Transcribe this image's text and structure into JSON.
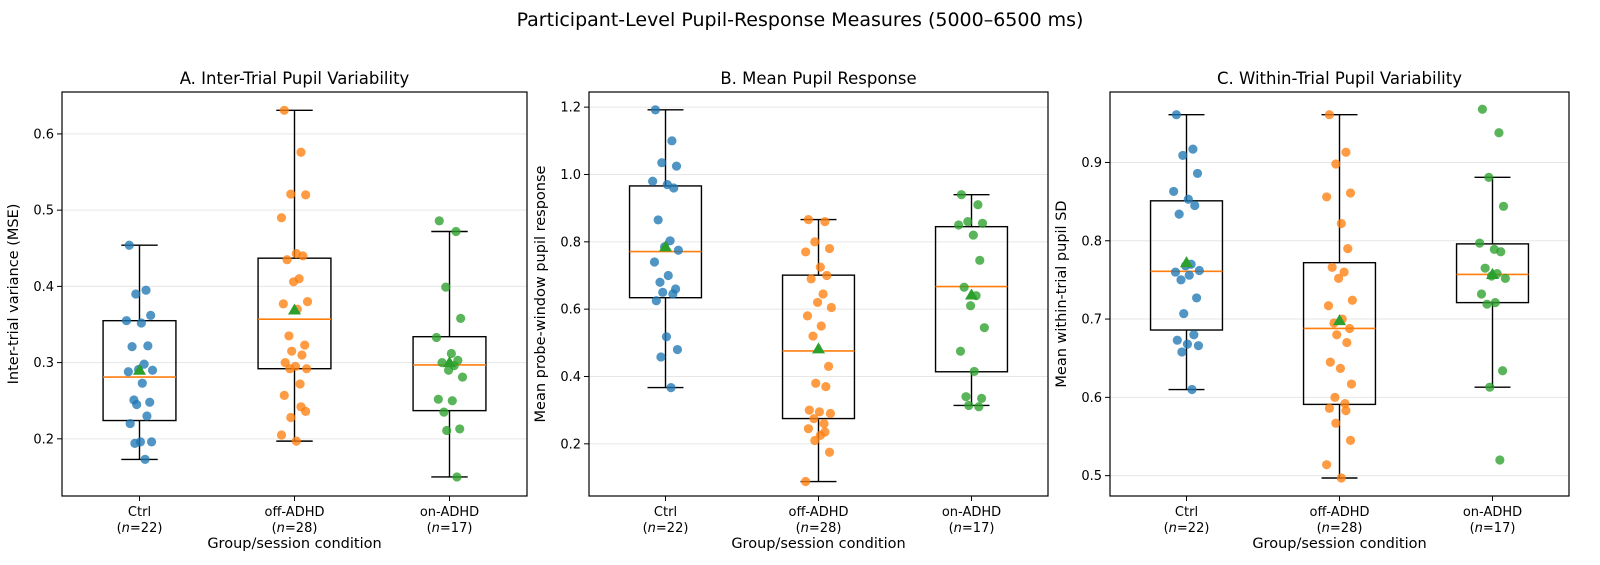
{
  "figure": {
    "title": "Participant-Level Pupil-Response Measures (5000–6500 ms)"
  },
  "colors": {
    "Ctrl": "#1f77b4",
    "off-ADHD": "#ff7f0e",
    "on-ADHD": "#2ca02c",
    "mean_marker": "#2ca02c",
    "median": "#ff7f0e"
  },
  "chart_data": [
    {
      "type": "box",
      "title": "A. Inter-Trial Pupil Variability",
      "xlabel": "Group/session condition",
      "ylabel": "Inter-trial variance (MSE)",
      "ylim": [
        0.125,
        0.655
      ],
      "yticks": [
        0.2,
        0.3,
        0.4,
        0.5,
        0.6
      ],
      "ytick_labels": [
        "0.2",
        "0.3",
        "0.4",
        "0.5",
        "0.6"
      ],
      "grid": "horizontal",
      "categories": [
        "Ctrl",
        "off-ADHD",
        "on-ADHD"
      ],
      "category_n": [
        "22",
        "28",
        "17"
      ],
      "boxes": [
        {
          "group": "Ctrl",
          "whislo": 0.173,
          "q1": 0.224,
          "median": 0.281,
          "q3": 0.355,
          "whishi": 0.454,
          "mean": 0.29
        },
        {
          "group": "off-ADHD",
          "whislo": 0.197,
          "q1": 0.292,
          "median": 0.357,
          "q3": 0.437,
          "whishi": 0.631,
          "mean": 0.369
        },
        {
          "group": "on-ADHD",
          "whislo": 0.15,
          "q1": 0.237,
          "median": 0.297,
          "q3": 0.334,
          "whishi": 0.472,
          "mean": 0.3
        }
      ],
      "points": [
        {
          "group": "Ctrl",
          "values": [
            0.454,
            0.395,
            0.39,
            0.362,
            0.355,
            0.352,
            0.322,
            0.321,
            0.298,
            0.291,
            0.29,
            0.288,
            0.273,
            0.251,
            0.248,
            0.245,
            0.23,
            0.22,
            0.196,
            0.196,
            0.194,
            0.173
          ]
        },
        {
          "group": "off-ADHD",
          "values": [
            0.631,
            0.576,
            0.521,
            0.52,
            0.49,
            0.443,
            0.44,
            0.435,
            0.41,
            0.406,
            0.38,
            0.377,
            0.37,
            0.335,
            0.323,
            0.315,
            0.31,
            0.3,
            0.295,
            0.292,
            0.292,
            0.272,
            0.257,
            0.242,
            0.228,
            0.236,
            0.205,
            0.197
          ]
        },
        {
          "group": "on-ADHD",
          "values": [
            0.486,
            0.472,
            0.399,
            0.358,
            0.333,
            0.312,
            0.303,
            0.3,
            0.296,
            0.29,
            0.281,
            0.252,
            0.25,
            0.235,
            0.213,
            0.211,
            0.15
          ]
        }
      ]
    },
    {
      "type": "box",
      "title": "B. Mean Pupil Response",
      "xlabel": "Group/session condition",
      "ylabel": "Mean probe-window pupil response",
      "ylim": [
        0.045,
        1.245
      ],
      "yticks": [
        0.2,
        0.4,
        0.6,
        0.8,
        1.0,
        1.2
      ],
      "ytick_labels": [
        "0.2",
        "0.4",
        "0.6",
        "0.8",
        "1.0",
        "1.2"
      ],
      "grid": "horizontal",
      "categories": [
        "Ctrl",
        "off-ADHD",
        "on-ADHD"
      ],
      "category_n": [
        "22",
        "28",
        "17"
      ],
      "boxes": [
        {
          "group": "Ctrl",
          "whislo": 0.367,
          "q1": 0.634,
          "median": 0.771,
          "q3": 0.966,
          "whishi": 1.192,
          "mean": 0.785
        },
        {
          "group": "off-ADHD",
          "whislo": 0.088,
          "q1": 0.275,
          "median": 0.476,
          "q3": 0.701,
          "whishi": 0.866,
          "mean": 0.482
        },
        {
          "group": "on-ADHD",
          "whislo": 0.314,
          "q1": 0.414,
          "median": 0.667,
          "q3": 0.845,
          "whishi": 0.94,
          "mean": 0.642
        }
      ],
      "points": [
        {
          "group": "Ctrl",
          "values": [
            1.192,
            1.1,
            1.035,
            1.025,
            0.98,
            0.97,
            0.96,
            0.865,
            0.803,
            0.785,
            0.775,
            0.74,
            0.7,
            0.68,
            0.66,
            0.65,
            0.645,
            0.625,
            0.518,
            0.48,
            0.458,
            0.367
          ]
        },
        {
          "group": "off-ADHD",
          "values": [
            0.866,
            0.86,
            0.8,
            0.78,
            0.77,
            0.725,
            0.7,
            0.69,
            0.645,
            0.62,
            0.605,
            0.58,
            0.55,
            0.52,
            0.43,
            0.38,
            0.37,
            0.3,
            0.295,
            0.29,
            0.275,
            0.26,
            0.245,
            0.235,
            0.21,
            0.175,
            0.088,
            0.225
          ]
        },
        {
          "group": "on-ADHD",
          "values": [
            0.94,
            0.91,
            0.86,
            0.855,
            0.85,
            0.82,
            0.745,
            0.665,
            0.64,
            0.61,
            0.545,
            0.475,
            0.415,
            0.34,
            0.335,
            0.314,
            0.31
          ]
        }
      ]
    },
    {
      "type": "box",
      "title": "C. Within-Trial Pupil Variability",
      "xlabel": "Group/session condition",
      "ylabel": "Mean within-trial pupil SD",
      "ylim": [
        0.474,
        0.99
      ],
      "yticks": [
        0.5,
        0.6,
        0.7,
        0.8,
        0.9
      ],
      "ytick_labels": [
        "0.5",
        "0.6",
        "0.7",
        "0.8",
        "0.9"
      ],
      "grid": "horizontal",
      "categories": [
        "Ctrl",
        "off-ADHD",
        "on-ADHD"
      ],
      "category_n": [
        "22",
        "28",
        "17"
      ],
      "boxes": [
        {
          "group": "Ctrl",
          "whislo": 0.61,
          "q1": 0.686,
          "median": 0.761,
          "q3": 0.851,
          "whishi": 0.961,
          "mean": 0.772
        },
        {
          "group": "off-ADHD",
          "whislo": 0.497,
          "q1": 0.591,
          "median": 0.688,
          "q3": 0.772,
          "whishi": 0.961,
          "mean": 0.698
        },
        {
          "group": "on-ADHD",
          "whislo": 0.613,
          "q1": 0.721,
          "median": 0.757,
          "q3": 0.796,
          "whishi": 0.881,
          "mean": 0.757
        }
      ],
      "points": [
        {
          "group": "Ctrl",
          "values": [
            0.961,
            0.917,
            0.909,
            0.886,
            0.863,
            0.853,
            0.845,
            0.834,
            0.77,
            0.768,
            0.762,
            0.76,
            0.756,
            0.75,
            0.727,
            0.707,
            0.68,
            0.673,
            0.668,
            0.666,
            0.658,
            0.61
          ]
        },
        {
          "group": "off-ADHD",
          "values": [
            0.961,
            0.913,
            0.898,
            0.861,
            0.856,
            0.822,
            0.79,
            0.766,
            0.76,
            0.752,
            0.724,
            0.717,
            0.7,
            0.695,
            0.688,
            0.68,
            0.67,
            0.645,
            0.637,
            0.617,
            0.6,
            0.592,
            0.586,
            0.583,
            0.567,
            0.545,
            0.514,
            0.497
          ]
        },
        {
          "group": "on-ADHD",
          "values": [
            0.968,
            0.938,
            0.881,
            0.844,
            0.797,
            0.789,
            0.786,
            0.765,
            0.758,
            0.755,
            0.752,
            0.732,
            0.721,
            0.719,
            0.634,
            0.613,
            0.52
          ]
        }
      ]
    }
  ]
}
